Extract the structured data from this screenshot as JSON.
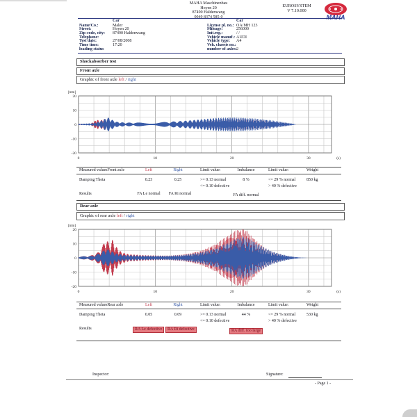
{
  "header": {
    "company": [
      "MAHA Maschinenbau",
      "Hoyen 20",
      "87490 Haldenwang",
      "0049 8374 585-0"
    ],
    "system_name": "EUROSYSTEM",
    "system_version": "V 7.10.000",
    "logo_text": "MAHA",
    "logo_color": "#d5293d",
    "logo_text_color": "#2b3f9e"
  },
  "info": {
    "left": {
      "header": "Car",
      "rows": [
        {
          "label": "Name/Co.:",
          "value": "Maler"
        },
        {
          "label": "Street:",
          "value": "Hoyen 20"
        },
        {
          "label": "Zip-code, city:",
          "value": "87490 Haldenwang"
        },
        {
          "label": "Telephone:",
          "value": ""
        },
        {
          "label": "Test date:",
          "value": "27/08/2008"
        },
        {
          "label": "Time time:",
          "value": "17:20"
        },
        {
          "label": "loading status",
          "value": ""
        }
      ]
    },
    "right": {
      "header": "Car",
      "rows": [
        {
          "label": "License pl. no.:",
          "value": "OA/MH 123"
        },
        {
          "label": "Mileage:",
          "value": "256000"
        },
        {
          "label": "Init.reg.:",
          "value": "/ /"
        },
        {
          "label": "Vehicle manuf.:",
          "value": "AUDI"
        },
        {
          "label": "Vehicle type:",
          "value": "A4"
        },
        {
          "label": "Veh. chassis no.:",
          "value": ""
        },
        {
          "label": "number of axles:",
          "value": "2"
        }
      ]
    }
  },
  "sections": {
    "test_title": "Shockabsorber test",
    "front_title": "Front axle",
    "front_graphic": "Graphic of front axle",
    "rear_title": "Rear axle",
    "rear_graphic": "Graphic of rear axle",
    "left_word": "left",
    "slash": " / ",
    "right_word": "right"
  },
  "front_table": {
    "c0": "Measured valuesFront axle",
    "c1": "Left",
    "c2": "Right",
    "c3": "Limit value:",
    "c4": "Imbalance",
    "c5": "Limit value:",
    "c6": "Weight",
    "r1_label": "Damping Theta",
    "r1_left": "0.23",
    "r1_right": "0.25",
    "r1_limit_a": ">= 0.13 normal",
    "r1_limit_b": "<= 0.10 defective",
    "r1_imb": "8 %",
    "r1_limit2_a": "<= 29 % normal",
    "r1_limit2_b": "> 40 % defective",
    "r1_weight": "850 kg",
    "r2_label": "Results",
    "r2_left": "FA Le normal",
    "r2_right": "FA Ri normal",
    "r2_imb": "FA diff. normal",
    "r2_left_flag": false,
    "r2_right_flag": false,
    "r2_imb_flag": false
  },
  "rear_table": {
    "c0": "Measured valuesRear axle",
    "c1": "Left",
    "c2": "Right",
    "c3": "Limit value:",
    "c4": "Imbalance",
    "c5": "Limit value:",
    "c6": "Weight",
    "r1_label": "Damping Theta",
    "r1_left": "0.05",
    "r1_right": "0.09",
    "r1_limit_a": ">= 0.13 normal",
    "r1_limit_b": "<= 0.10 defective",
    "r1_imb": "44 %",
    "r1_limit2_a": "<= 29 % normal",
    "r1_limit2_b": "> 40 % defective",
    "r1_weight": "530 kg",
    "r2_label": "Results",
    "r2_left": "RA Le defective",
    "r2_right": "RA Ri defective",
    "r2_imb": "RA diff. too large",
    "r2_left_flag": true,
    "r2_right_flag": true,
    "r2_imb_flag": true
  },
  "footer": {
    "inspector_label": "Inspector:",
    "signature_label": "Signature:",
    "page_label": "- Page 1 -"
  },
  "colors": {
    "left_series": "#c23b4d",
    "right_series": "#3a5ca8",
    "table_rule": "#2a3580",
    "flag_bg": "#e57b81",
    "flag_text": "#7a0c1e"
  },
  "chart_data": [
    {
      "type": "line",
      "title": "Graphic of front axle left / right",
      "xlabel": "(s)",
      "ylabel": "[mm]",
      "xlim": [
        0,
        33
      ],
      "ylim": [
        -20,
        20
      ],
      "xticks": [
        0,
        10,
        20,
        30
      ],
      "yticks": [
        20,
        10,
        0,
        -10,
        -20
      ],
      "x_minor_step": 2,
      "y_minor_step": 5,
      "grid": true,
      "legend": "none",
      "texture": {
        "f0": 20,
        "k": 0.35
      },
      "series": [
        {
          "name": "left",
          "color": "#c23b4d",
          "envelope": [
            [
              0,
              0.4
            ],
            [
              1.6,
              0.5
            ],
            [
              2,
              2
            ],
            [
              2.4,
              3.5
            ],
            [
              2.8,
              2.2
            ],
            [
              3.2,
              4.2
            ],
            [
              3.8,
              3
            ],
            [
              4.6,
              1.4
            ],
            [
              6,
              1
            ],
            [
              10,
              1
            ],
            [
              14,
              2
            ],
            [
              18,
              3.8
            ],
            [
              21,
              4.2
            ],
            [
              24,
              3
            ],
            [
              26,
              1.6
            ],
            [
              27.8,
              0.4
            ],
            [
              28.2,
              0
            ],
            [
              33,
              0
            ]
          ]
        },
        {
          "name": "right",
          "color": "#3a5ca8",
          "envelope": [
            [
              0,
              0.4
            ],
            [
              1.8,
              0.8
            ],
            [
              2.6,
              1.8
            ],
            [
              3.3,
              3.5
            ],
            [
              3.8,
              5
            ],
            [
              4.4,
              3.2
            ],
            [
              5,
              1.8
            ],
            [
              6,
              1.3
            ],
            [
              10,
              1.3
            ],
            [
              14,
              2.6
            ],
            [
              18,
              4.6
            ],
            [
              20.5,
              5
            ],
            [
              23,
              4.2
            ],
            [
              25,
              3
            ],
            [
              26.5,
              1.8
            ],
            [
              28,
              0.5
            ],
            [
              28.4,
              0
            ],
            [
              33,
              0
            ]
          ]
        }
      ]
    },
    {
      "type": "line",
      "title": "Graphic of rear axle left / right",
      "xlabel": "(s)",
      "ylabel": "[mm]",
      "xlim": [
        0,
        33
      ],
      "ylim": [
        -20,
        20
      ],
      "xticks": [
        0,
        10,
        20,
        30
      ],
      "yticks": [
        20,
        10,
        0,
        -10,
        -20
      ],
      "x_minor_step": 2,
      "y_minor_step": 5,
      "grid": true,
      "legend": "none",
      "texture": {
        "f0": 16,
        "k": 0.25
      },
      "series": [
        {
          "name": "left",
          "color": "#c23b4d",
          "envelope": [
            [
              0,
              0.8
            ],
            [
              1.6,
              1.6
            ],
            [
              2.6,
              4
            ],
            [
              3.2,
              9
            ],
            [
              3.6,
              15
            ],
            [
              4,
              9
            ],
            [
              4.4,
              13
            ],
            [
              4.9,
              8
            ],
            [
              5.6,
              4
            ],
            [
              6.6,
              2.5
            ],
            [
              9,
              1.8
            ],
            [
              12,
              1.6
            ],
            [
              14,
              2.6
            ],
            [
              16,
              5
            ],
            [
              18,
              10
            ],
            [
              19.5,
              16
            ],
            [
              20.8,
              20
            ],
            [
              21.8,
              20
            ],
            [
              22.6,
              15
            ],
            [
              23.6,
              10
            ],
            [
              24.6,
              6
            ],
            [
              25.6,
              3.5
            ],
            [
              26.6,
              2
            ],
            [
              27.6,
              0.8
            ],
            [
              28.6,
              0.2
            ],
            [
              29.2,
              0
            ],
            [
              33,
              0
            ]
          ]
        },
        {
          "name": "right",
          "color": "#3a5ca8",
          "envelope": [
            [
              0,
              0.8
            ],
            [
              2,
              1.5
            ],
            [
              3,
              4
            ],
            [
              3.6,
              6.5
            ],
            [
              4.2,
              5
            ],
            [
              5,
              3
            ],
            [
              6,
              2
            ],
            [
              9,
              1.5
            ],
            [
              12,
              1.5
            ],
            [
              14,
              2.2
            ],
            [
              16,
              4
            ],
            [
              18,
              7
            ],
            [
              20,
              12
            ],
            [
              21.3,
              15
            ],
            [
              22.3,
              13.5
            ],
            [
              23.3,
              10
            ],
            [
              24.3,
              7
            ],
            [
              25.3,
              4.5
            ],
            [
              26.3,
              2.8
            ],
            [
              27.3,
              1.5
            ],
            [
              28.3,
              0.6
            ],
            [
              29,
              0.2
            ],
            [
              30,
              0
            ],
            [
              33,
              0
            ]
          ]
        }
      ]
    }
  ]
}
